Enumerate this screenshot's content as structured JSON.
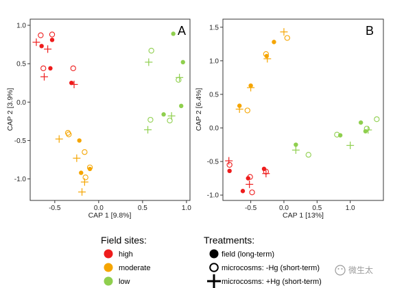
{
  "colors": {
    "high": "#ee1c1c",
    "moderate": "#f5a500",
    "low": "#8fcf4e",
    "axis": "#333333"
  },
  "legend": {
    "sites_title": "Field sites:",
    "sites": [
      {
        "key": "high",
        "label": "high"
      },
      {
        "key": "moderate",
        "label": "moderate"
      },
      {
        "key": "low",
        "label": "low"
      }
    ],
    "treatments_title": "Treatments:",
    "treatments": [
      {
        "shape": "filled",
        "label": "field (long-term)"
      },
      {
        "shape": "open",
        "label": "microcosms: -Hg (short-term)"
      },
      {
        "shape": "plus",
        "label": "microcosms: +Hg (short-term)"
      }
    ]
  },
  "watermark": {
    "text": "微生太"
  },
  "chart_data": [
    {
      "type": "scatter",
      "panel": "A",
      "xlabel": "CAP 1 [9.8%]",
      "ylabel": "CAP 2 [3.9%]",
      "xlim": [
        -0.78,
        1.04
      ],
      "ylim": [
        -1.28,
        1.08
      ],
      "xticks": [
        -0.5,
        0.0,
        0.5,
        1.0
      ],
      "xticklabels": [
        "-0.5",
        "0.0",
        "0.5",
        "1.0"
      ],
      "yticks": [
        -1.0,
        -0.5,
        0.0,
        0.5,
        1.0
      ],
      "yticklabels": [
        "-1.0",
        "-0.5",
        "0.0",
        "0.5",
        "1.0"
      ],
      "points": [
        {
          "x": -0.66,
          "y": 0.87,
          "site": "high",
          "shape": "open"
        },
        {
          "x": -0.53,
          "y": 0.88,
          "site": "high",
          "shape": "open"
        },
        {
          "x": -0.65,
          "y": 0.73,
          "site": "high",
          "shape": "filled"
        },
        {
          "x": -0.53,
          "y": 0.81,
          "site": "high",
          "shape": "filled"
        },
        {
          "x": -0.71,
          "y": 0.78,
          "site": "high",
          "shape": "plus"
        },
        {
          "x": -0.58,
          "y": 0.69,
          "site": "high",
          "shape": "plus"
        },
        {
          "x": -0.63,
          "y": 0.44,
          "site": "high",
          "shape": "open"
        },
        {
          "x": -0.55,
          "y": 0.44,
          "site": "high",
          "shape": "filled"
        },
        {
          "x": -0.62,
          "y": 0.33,
          "site": "high",
          "shape": "plus"
        },
        {
          "x": -0.29,
          "y": 0.44,
          "site": "high",
          "shape": "open"
        },
        {
          "x": -0.31,
          "y": 0.25,
          "site": "high",
          "shape": "filled"
        },
        {
          "x": -0.28,
          "y": 0.23,
          "site": "high",
          "shape": "plus"
        },
        {
          "x": -0.35,
          "y": -0.4,
          "site": "moderate",
          "shape": "open"
        },
        {
          "x": -0.34,
          "y": -0.42,
          "site": "moderate",
          "shape": "open"
        },
        {
          "x": -0.45,
          "y": -0.48,
          "site": "moderate",
          "shape": "plus"
        },
        {
          "x": -0.22,
          "y": -0.5,
          "site": "moderate",
          "shape": "filled"
        },
        {
          "x": -0.16,
          "y": -0.65,
          "site": "moderate",
          "shape": "open"
        },
        {
          "x": -0.25,
          "y": -0.73,
          "site": "moderate",
          "shape": "plus"
        },
        {
          "x": -0.1,
          "y": -0.85,
          "site": "moderate",
          "shape": "open"
        },
        {
          "x": -0.1,
          "y": -0.87,
          "site": "moderate",
          "shape": "filled"
        },
        {
          "x": -0.2,
          "y": -0.92,
          "site": "moderate",
          "shape": "filled"
        },
        {
          "x": -0.15,
          "y": -0.98,
          "site": "moderate",
          "shape": "open"
        },
        {
          "x": -0.16,
          "y": -1.04,
          "site": "moderate",
          "shape": "plus"
        },
        {
          "x": -0.19,
          "y": -1.17,
          "site": "moderate",
          "shape": "plus"
        },
        {
          "x": 0.85,
          "y": 0.89,
          "site": "low",
          "shape": "filled"
        },
        {
          "x": 0.6,
          "y": 0.67,
          "site": "low",
          "shape": "open"
        },
        {
          "x": 0.96,
          "y": 0.52,
          "site": "low",
          "shape": "filled"
        },
        {
          "x": 0.57,
          "y": 0.52,
          "site": "low",
          "shape": "plus"
        },
        {
          "x": 0.92,
          "y": 0.32,
          "site": "low",
          "shape": "plus"
        },
        {
          "x": 0.91,
          "y": 0.29,
          "site": "low",
          "shape": "open"
        },
        {
          "x": 0.94,
          "y": -0.05,
          "site": "low",
          "shape": "filled"
        },
        {
          "x": 0.74,
          "y": -0.16,
          "site": "low",
          "shape": "filled"
        },
        {
          "x": 0.83,
          "y": -0.18,
          "site": "low",
          "shape": "plus"
        },
        {
          "x": 0.59,
          "y": -0.23,
          "site": "low",
          "shape": "open"
        },
        {
          "x": 0.81,
          "y": -0.24,
          "site": "low",
          "shape": "open"
        },
        {
          "x": 0.56,
          "y": -0.36,
          "site": "low",
          "shape": "plus"
        }
      ]
    },
    {
      "type": "scatter",
      "panel": "B",
      "xlabel": "CAP 1 [13%]",
      "ylabel": "CAP 2 [6.4%]",
      "xlim": [
        -0.92,
        1.5
      ],
      "ylim": [
        -1.08,
        1.62
      ],
      "xticks": [
        -0.5,
        0.0,
        0.5,
        1.0
      ],
      "xticklabels": [
        "-0.5",
        "0.0",
        "0.5",
        "1.0"
      ],
      "yticks": [
        -1.0,
        -0.5,
        0.0,
        0.5,
        1.0,
        1.5
      ],
      "yticklabels": [
        "-1.0",
        "-0.5",
        "0.0",
        "0.5",
        "1.0",
        "1.5"
      ],
      "points": [
        {
          "x": 0.0,
          "y": 1.43,
          "site": "moderate",
          "shape": "plus"
        },
        {
          "x": 0.05,
          "y": 1.34,
          "site": "moderate",
          "shape": "open"
        },
        {
          "x": -0.15,
          "y": 1.28,
          "site": "moderate",
          "shape": "filled"
        },
        {
          "x": -0.27,
          "y": 1.1,
          "site": "moderate",
          "shape": "open"
        },
        {
          "x": -0.26,
          "y": 1.07,
          "site": "moderate",
          "shape": "filled"
        },
        {
          "x": -0.25,
          "y": 1.03,
          "site": "moderate",
          "shape": "plus"
        },
        {
          "x": -0.5,
          "y": 0.63,
          "site": "moderate",
          "shape": "filled"
        },
        {
          "x": -0.5,
          "y": 0.6,
          "site": "moderate",
          "shape": "plus"
        },
        {
          "x": -0.67,
          "y": 0.33,
          "site": "moderate",
          "shape": "filled"
        },
        {
          "x": -0.67,
          "y": 0.28,
          "site": "moderate",
          "shape": "plus"
        },
        {
          "x": -0.55,
          "y": 0.26,
          "site": "moderate",
          "shape": "open"
        },
        {
          "x": 1.4,
          "y": 0.13,
          "site": "low",
          "shape": "open"
        },
        {
          "x": 1.16,
          "y": 0.08,
          "site": "low",
          "shape": "filled"
        },
        {
          "x": 1.25,
          "y": -0.01,
          "site": "low",
          "shape": "open"
        },
        {
          "x": 1.27,
          "y": -0.03,
          "site": "low",
          "shape": "plus"
        },
        {
          "x": 1.23,
          "y": -0.05,
          "site": "low",
          "shape": "filled"
        },
        {
          "x": 0.8,
          "y": -0.1,
          "site": "low",
          "shape": "open"
        },
        {
          "x": 0.85,
          "y": -0.11,
          "site": "low",
          "shape": "filled"
        },
        {
          "x": 1.0,
          "y": -0.26,
          "site": "low",
          "shape": "plus"
        },
        {
          "x": 0.18,
          "y": -0.25,
          "site": "low",
          "shape": "filled"
        },
        {
          "x": 0.18,
          "y": -0.33,
          "site": "low",
          "shape": "plus"
        },
        {
          "x": 0.37,
          "y": -0.4,
          "site": "low",
          "shape": "open"
        },
        {
          "x": -0.83,
          "y": -0.49,
          "site": "high",
          "shape": "plus"
        },
        {
          "x": -0.82,
          "y": -0.55,
          "site": "high",
          "shape": "open"
        },
        {
          "x": -0.82,
          "y": -0.64,
          "site": "high",
          "shape": "filled"
        },
        {
          "x": -0.3,
          "y": -0.61,
          "site": "high",
          "shape": "filled"
        },
        {
          "x": -0.27,
          "y": -0.65,
          "site": "high",
          "shape": "open"
        },
        {
          "x": -0.27,
          "y": -0.68,
          "site": "high",
          "shape": "plus"
        },
        {
          "x": -0.51,
          "y": -0.73,
          "site": "high",
          "shape": "open"
        },
        {
          "x": -0.54,
          "y": -0.75,
          "site": "high",
          "shape": "filled"
        },
        {
          "x": -0.52,
          "y": -0.84,
          "site": "high",
          "shape": "plus"
        },
        {
          "x": -0.62,
          "y": -0.94,
          "site": "high",
          "shape": "filled"
        },
        {
          "x": -0.48,
          "y": -0.96,
          "site": "high",
          "shape": "open"
        }
      ]
    }
  ]
}
